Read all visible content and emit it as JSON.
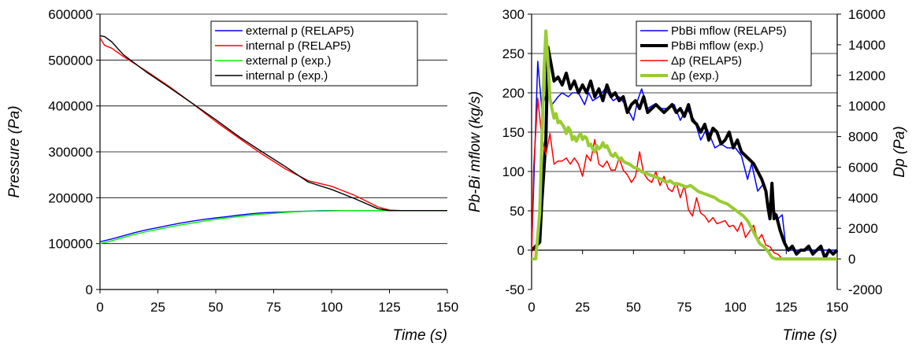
{
  "chart_data": [
    {
      "type": "line",
      "title": "",
      "xlabel": "Time (s)",
      "ylabel": "Pressure (Pa)",
      "xlim": [
        0,
        150
      ],
      "ylim": [
        0,
        600000
      ],
      "xticks": [
        "0",
        "25",
        "50",
        "75",
        "100",
        "125",
        "150"
      ],
      "yticks": [
        "0",
        "100000",
        "200000",
        "300000",
        "400000",
        "500000",
        "600000"
      ],
      "grid": "horizontal",
      "legend_position": "top-right",
      "series": [
        {
          "name": "external p (RELAP5)",
          "color": "#0000ff",
          "x": [
            0,
            5,
            10,
            15,
            20,
            25,
            30,
            35,
            40,
            45,
            50,
            55,
            60,
            65,
            70,
            75,
            80,
            85,
            90,
            95,
            100,
            105,
            110,
            115,
            120,
            125,
            130,
            140,
            150
          ],
          "y": [
            104000,
            110000,
            117000,
            124000,
            130000,
            135000,
            140000,
            145000,
            149000,
            153000,
            156000,
            159000,
            162000,
            165000,
            167000,
            168000,
            169000,
            170000,
            171000,
            171500,
            172000,
            172000,
            172000,
            172000,
            172000,
            172000,
            172000,
            172000,
            172000
          ]
        },
        {
          "name": "internal p (RELAP5)",
          "color": "#ff0000",
          "x": [
            0,
            2,
            5,
            10,
            20,
            30,
            40,
            50,
            60,
            70,
            80,
            90,
            100,
            110,
            120,
            125,
            130,
            140,
            150
          ],
          "y": [
            548000,
            532000,
            526000,
            508000,
            476000,
            442000,
            405000,
            366000,
            330000,
            295000,
            263000,
            237000,
            225000,
            205000,
            180000,
            173000,
            172000,
            172000,
            172000
          ]
        },
        {
          "name": "external p (exp.)",
          "color": "#00ee00",
          "x": [
            0,
            5,
            10,
            15,
            20,
            25,
            30,
            35,
            40,
            45,
            50,
            55,
            60,
            65,
            70,
            75,
            80,
            85,
            90,
            95,
            100,
            105,
            110,
            115,
            120,
            125,
            130,
            140,
            150
          ],
          "y": [
            100000,
            106000,
            113000,
            120000,
            126000,
            131000,
            136000,
            141000,
            145000,
            149000,
            153000,
            156000,
            159000,
            162000,
            164000,
            166000,
            168000,
            169500,
            170500,
            171000,
            171500,
            172000,
            172000,
            172000,
            172000,
            172000,
            172000,
            172000,
            172000
          ]
        },
        {
          "name": "internal p (exp.)",
          "color": "#000000",
          "x": [
            0,
            2,
            5,
            10,
            20,
            30,
            40,
            50,
            60,
            70,
            80,
            90,
            100,
            110,
            120,
            125,
            130,
            140,
            150
          ],
          "y": [
            553000,
            551000,
            540000,
            512000,
            474000,
            440000,
            405000,
            370000,
            333000,
            300000,
            268000,
            234000,
            218000,
            198000,
            176000,
            172000,
            172000,
            172000,
            172000
          ]
        }
      ]
    },
    {
      "type": "line",
      "title": "",
      "xlabel": "Time (s)",
      "ylabel": "Pb-Bi mflow (kg/s)",
      "y2label": "Dp (Pa)",
      "xlim": [
        0,
        150
      ],
      "ylim": [
        -50,
        300
      ],
      "y2lim": [
        -2000,
        16000
      ],
      "xticks": [
        "0",
        "25",
        "50",
        "75",
        "100",
        "125",
        "150"
      ],
      "yticks": [
        "-50",
        "0",
        "50",
        "100",
        "150",
        "200",
        "250",
        "300"
      ],
      "y2ticks": [
        "-2000",
        "0",
        "2000",
        "4000",
        "6000",
        "8000",
        "10000",
        "12000",
        "14000",
        "16000"
      ],
      "grid": "horizontal",
      "legend_position": "top-right",
      "series": [
        {
          "name": "PbBi mflow (RELAP5)",
          "axis": "left",
          "color": "#0000ff",
          "width": 1.5,
          "x": [
            0,
            1,
            3,
            5,
            8,
            10,
            13,
            15,
            18,
            20,
            23,
            26,
            28,
            30,
            33,
            36,
            40,
            43,
            46,
            50,
            52,
            54,
            57,
            60,
            63,
            66,
            70,
            73,
            76,
            80,
            83,
            86,
            90,
            93,
            96,
            100,
            103,
            106,
            108,
            111,
            114,
            116,
            119,
            121,
            123,
            125,
            128,
            130,
            135,
            140,
            145,
            150
          ],
          "y": [
            0,
            80,
            240,
            180,
            205,
            185,
            195,
            200,
            195,
            200,
            200,
            185,
            200,
            190,
            195,
            205,
            190,
            195,
            185,
            165,
            190,
            205,
            180,
            185,
            180,
            180,
            185,
            165,
            180,
            165,
            140,
            155,
            130,
            135,
            130,
            130,
            120,
            90,
            110,
            75,
            85,
            60,
            50,
            40,
            45,
            0,
            0,
            0,
            0,
            0,
            0,
            0
          ]
        },
        {
          "name": "PbBi mflow (exp.)",
          "axis": "left",
          "color": "#000000",
          "width": 4,
          "x": [
            0,
            2,
            4,
            5,
            7,
            8,
            10,
            11,
            13,
            15,
            17,
            19,
            21,
            23,
            25,
            27,
            29,
            31,
            33,
            35,
            37,
            39,
            41,
            43,
            45,
            47,
            49,
            51,
            53,
            55,
            57,
            59,
            61,
            63,
            65,
            67,
            69,
            71,
            73,
            75,
            77,
            79,
            81,
            83,
            85,
            87,
            89,
            91,
            93,
            95,
            97,
            99,
            101,
            103,
            105,
            107,
            109,
            111,
            113,
            115,
            116,
            117,
            118,
            119,
            120,
            122,
            124,
            126,
            128,
            130,
            132,
            134,
            136,
            138,
            140,
            142,
            144,
            146,
            148,
            150
          ],
          "y": [
            0,
            5,
            10,
            60,
            140,
            258,
            230,
            215,
            220,
            210,
            225,
            205,
            215,
            200,
            210,
            200,
            215,
            195,
            205,
            190,
            210,
            195,
            200,
            190,
            195,
            175,
            185,
            190,
            180,
            195,
            175,
            180,
            185,
            180,
            175,
            180,
            185,
            175,
            180,
            170,
            185,
            165,
            160,
            150,
            160,
            140,
            155,
            150,
            135,
            140,
            150,
            130,
            140,
            125,
            120,
            115,
            110,
            100,
            90,
            75,
            55,
            40,
            85,
            40,
            45,
            25,
            10,
            0,
            5,
            -5,
            0,
            0,
            5,
            -5,
            0,
            5,
            -10,
            0,
            -5,
            0
          ]
        },
        {
          "name": "Δp (RELAP5)",
          "axis": "right",
          "color": "#ff0000",
          "width": 1.5,
          "x": [
            0,
            1,
            3,
            5,
            7,
            9,
            11,
            13,
            15,
            17,
            19,
            21,
            23,
            25,
            27,
            29,
            31,
            33,
            35,
            37,
            39,
            41,
            43,
            45,
            47,
            49,
            51,
            53,
            55,
            57,
            59,
            61,
            63,
            65,
            67,
            69,
            71,
            73,
            75,
            77,
            79,
            81,
            83,
            85,
            87,
            89,
            91,
            93,
            95,
            97,
            99,
            101,
            103,
            105,
            107,
            109,
            111,
            113,
            115,
            117,
            119,
            121,
            123,
            125,
            127,
            130,
            135,
            140,
            145,
            150
          ],
          "y": [
            0,
            6000,
            10500,
            8000,
            6800,
            8200,
            6200,
            6400,
            6400,
            6600,
            6200,
            6600,
            6200,
            5400,
            6800,
            6400,
            7800,
            6200,
            6000,
            6400,
            5800,
            5800,
            6600,
            5800,
            5500,
            5000,
            5400,
            7000,
            5600,
            5200,
            5000,
            5700,
            4800,
            5400,
            4600,
            4400,
            5000,
            4000,
            4800,
            3200,
            2800,
            4000,
            3000,
            2800,
            2400,
            2700,
            2300,
            2400,
            2500,
            2100,
            2200,
            1800,
            2400,
            1400,
            1800,
            2200,
            1200,
            1600,
            900,
            800,
            400,
            300,
            0,
            0,
            0,
            0,
            0,
            0,
            0,
            0
          ]
        },
        {
          "name": "Δp (exp.)",
          "axis": "right",
          "color": "#99cc33",
          "width": 4,
          "x": [
            0,
            2,
            4,
            6,
            7,
            8,
            9,
            10,
            11,
            12,
            13,
            14,
            15,
            16,
            17,
            18,
            19,
            20,
            21,
            22,
            23,
            24,
            25,
            26,
            27,
            28,
            29,
            30,
            31,
            32,
            33,
            34,
            35,
            36,
            37,
            38,
            39,
            40,
            41,
            42,
            43,
            44,
            45,
            46,
            48,
            50,
            52,
            54,
            56,
            58,
            60,
            62,
            64,
            66,
            68,
            70,
            72,
            74,
            76,
            78,
            80,
            82,
            84,
            86,
            88,
            90,
            92,
            94,
            96,
            98,
            100,
            102,
            104,
            106,
            108,
            110,
            112,
            114,
            116,
            118,
            120,
            125,
            130,
            135,
            140,
            145,
            150
          ],
          "y": [
            0,
            0,
            3000,
            12000,
            14900,
            13000,
            10500,
            9800,
            9200,
            9500,
            8900,
            9000,
            8800,
            8600,
            8200,
            8600,
            8400,
            7800,
            8000,
            7700,
            8000,
            8200,
            7800,
            8000,
            7900,
            7400,
            7500,
            7200,
            7000,
            7400,
            7200,
            7300,
            7600,
            7300,
            7400,
            7100,
            6800,
            6700,
            6900,
            6700,
            6500,
            6600,
            6400,
            6300,
            6200,
            6000,
            5900,
            5700,
            5600,
            5500,
            5400,
            5300,
            5200,
            5000,
            5100,
            4900,
            4900,
            4800,
            4700,
            4800,
            4600,
            4400,
            4300,
            4200,
            4100,
            4000,
            3800,
            3700,
            3600,
            3400,
            3200,
            3000,
            2800,
            2500,
            2000,
            1500,
            1000,
            800,
            500,
            100,
            0,
            0,
            0,
            0,
            0,
            0,
            0
          ]
        }
      ]
    }
  ]
}
